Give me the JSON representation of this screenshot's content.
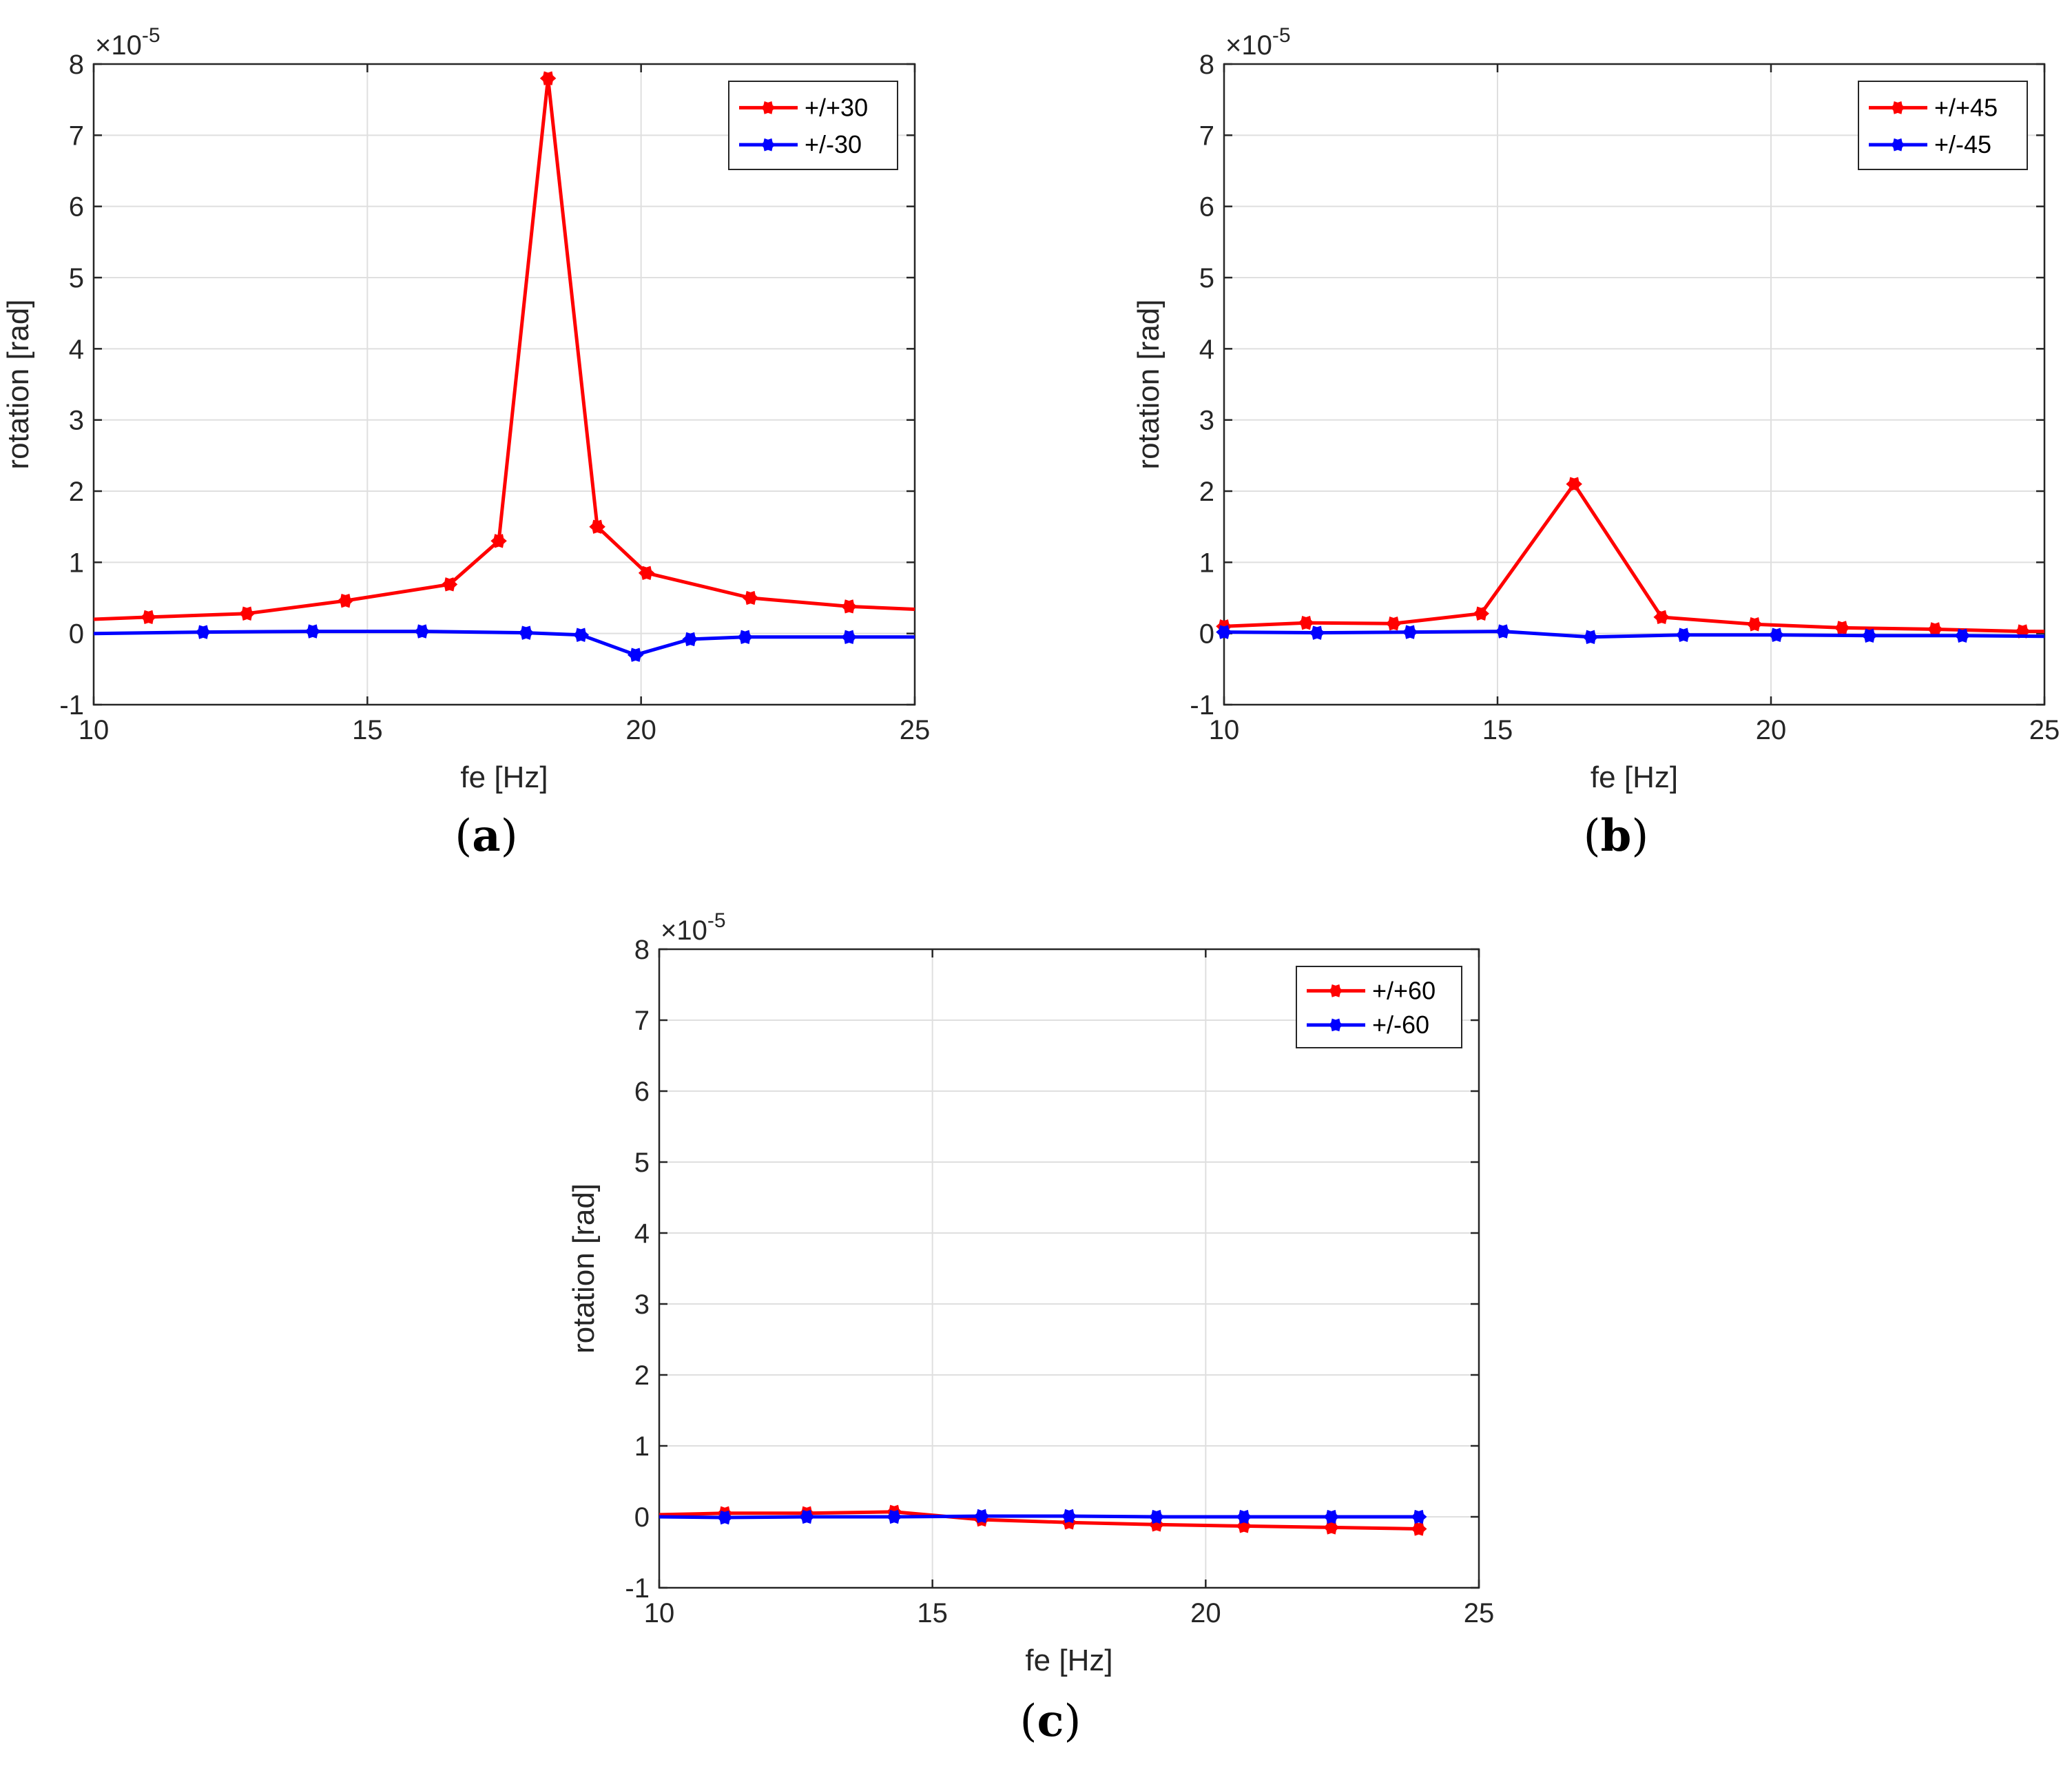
{
  "colors": {
    "red_series": "#ff0000",
    "blue_series": "#0000ff",
    "grid": "#dfdfdf",
    "axis": "#262626"
  },
  "chart_data": [
    {
      "type": "line",
      "panel_label": "a",
      "xlabel": "fe [Hz]",
      "ylabel": "rotation [rad]",
      "y_multiplier": "×10",
      "y_exponent": "-5",
      "xlim": [
        10,
        25
      ],
      "ylim": [
        -1,
        8
      ],
      "xticks": [
        10,
        15,
        20,
        25
      ],
      "yticks": [
        -1,
        0,
        1,
        2,
        3,
        4,
        5,
        6,
        7,
        8
      ],
      "grid": true,
      "legend_position": "top-right",
      "series": [
        {
          "name": "+/+30",
          "color": "#ff0000",
          "points": [
            [
              10,
              0.2
            ],
            [
              11.0,
              0.23
            ],
            [
              12.8,
              0.28
            ],
            [
              14.6,
              0.46
            ],
            [
              16.5,
              0.69
            ],
            [
              17.4,
              1.3
            ],
            [
              18.3,
              7.8
            ],
            [
              19.2,
              1.5
            ],
            [
              20.1,
              0.85
            ],
            [
              22.0,
              0.5
            ],
            [
              23.8,
              0.38
            ],
            [
              25,
              0.34
            ]
          ],
          "marker_points": [
            [
              11.0,
              0.23
            ],
            [
              12.8,
              0.28
            ],
            [
              14.6,
              0.46
            ],
            [
              16.5,
              0.69
            ],
            [
              17.4,
              1.3
            ],
            [
              18.3,
              7.8
            ],
            [
              19.2,
              1.5
            ],
            [
              20.1,
              0.85
            ],
            [
              22.0,
              0.5
            ],
            [
              23.8,
              0.38
            ]
          ]
        },
        {
          "name": "+/-30",
          "color": "#0000ff",
          "points": [
            [
              10,
              0.0
            ],
            [
              12.0,
              0.02
            ],
            [
              14.0,
              0.03
            ],
            [
              16.0,
              0.03
            ],
            [
              17.9,
              0.01
            ],
            [
              18.9,
              -0.02
            ],
            [
              19.9,
              -0.3
            ],
            [
              20.9,
              -0.08
            ],
            [
              21.9,
              -0.05
            ],
            [
              23.8,
              -0.05
            ],
            [
              25,
              -0.05
            ]
          ],
          "marker_points": [
            [
              12.0,
              0.02
            ],
            [
              14.0,
              0.03
            ],
            [
              16.0,
              0.03
            ],
            [
              17.9,
              0.01
            ],
            [
              18.9,
              -0.02
            ],
            [
              19.9,
              -0.3
            ],
            [
              20.9,
              -0.08
            ],
            [
              21.9,
              -0.05
            ],
            [
              23.8,
              -0.05
            ]
          ]
        }
      ]
    },
    {
      "type": "line",
      "panel_label": "b",
      "xlabel": "fe [Hz]",
      "ylabel": "rotation [rad]",
      "y_multiplier": "×10",
      "y_exponent": "-5",
      "xlim": [
        10,
        25
      ],
      "ylim": [
        -1,
        8
      ],
      "xticks": [
        10,
        15,
        20,
        25
      ],
      "yticks": [
        -1,
        0,
        1,
        2,
        3,
        4,
        5,
        6,
        7,
        8
      ],
      "grid": true,
      "legend_position": "top-right",
      "series": [
        {
          "name": "+/+45",
          "color": "#ff0000",
          "points": [
            [
              10,
              0.1
            ],
            [
              11.5,
              0.15
            ],
            [
              13.1,
              0.14
            ],
            [
              14.7,
              0.28
            ],
            [
              16.4,
              2.1
            ],
            [
              18.0,
              0.23
            ],
            [
              19.7,
              0.13
            ],
            [
              21.3,
              0.08
            ],
            [
              23.0,
              0.06
            ],
            [
              24.6,
              0.03
            ],
            [
              25,
              0.03
            ]
          ],
          "marker_points": [
            [
              10.0,
              0.1
            ],
            [
              11.5,
              0.15
            ],
            [
              13.1,
              0.14
            ],
            [
              14.7,
              0.28
            ],
            [
              16.4,
              2.1
            ],
            [
              18.0,
              0.23
            ],
            [
              19.7,
              0.13
            ],
            [
              21.3,
              0.08
            ],
            [
              23.0,
              0.06
            ],
            [
              24.6,
              0.03
            ]
          ]
        },
        {
          "name": "+/-45",
          "color": "#0000ff",
          "points": [
            [
              10,
              0.02
            ],
            [
              11.7,
              0.01
            ],
            [
              13.4,
              0.02
            ],
            [
              15.1,
              0.03
            ],
            [
              16.7,
              -0.05
            ],
            [
              18.4,
              -0.02
            ],
            [
              20.1,
              -0.02
            ],
            [
              21.8,
              -0.03
            ],
            [
              23.5,
              -0.03
            ],
            [
              25,
              -0.04
            ]
          ],
          "marker_points": [
            [
              10.0,
              0.02
            ],
            [
              11.7,
              0.01
            ],
            [
              13.4,
              0.02
            ],
            [
              15.1,
              0.03
            ],
            [
              16.7,
              -0.05
            ],
            [
              18.4,
              -0.02
            ],
            [
              20.1,
              -0.02
            ],
            [
              21.8,
              -0.03
            ],
            [
              23.5,
              -0.03
            ]
          ]
        }
      ]
    },
    {
      "type": "line",
      "panel_label": "c",
      "xlabel": "fe [Hz]",
      "ylabel": "rotation [rad]",
      "y_multiplier": "×10",
      "y_exponent": "-5",
      "xlim": [
        10,
        25
      ],
      "ylim": [
        -1,
        8
      ],
      "xticks": [
        10,
        15,
        20,
        25
      ],
      "yticks": [
        -1,
        0,
        1,
        2,
        3,
        4,
        5,
        6,
        7,
        8
      ],
      "grid": true,
      "legend_position": "top-right",
      "series": [
        {
          "name": "+/+60",
          "color": "#ff0000",
          "points": [
            [
              10,
              0.03
            ],
            [
              11.2,
              0.05
            ],
            [
              12.7,
              0.05
            ],
            [
              14.3,
              0.07
            ],
            [
              15.9,
              -0.04
            ],
            [
              17.5,
              -0.08
            ],
            [
              19.1,
              -0.11
            ],
            [
              20.7,
              -0.13
            ],
            [
              22.3,
              -0.15
            ],
            [
              23.9,
              -0.17
            ]
          ],
          "marker_points": [
            [
              11.2,
              0.05
            ],
            [
              12.7,
              0.05
            ],
            [
              14.3,
              0.07
            ],
            [
              15.9,
              -0.04
            ],
            [
              17.5,
              -0.08
            ],
            [
              19.1,
              -0.11
            ],
            [
              20.7,
              -0.13
            ],
            [
              22.3,
              -0.15
            ],
            [
              23.9,
              -0.17
            ]
          ]
        },
        {
          "name": "+/-60",
          "color": "#0000ff",
          "points": [
            [
              10,
              0.0
            ],
            [
              11.2,
              -0.01
            ],
            [
              12.7,
              0.0
            ],
            [
              14.3,
              0.0
            ],
            [
              15.9,
              0.01
            ],
            [
              17.5,
              0.01
            ],
            [
              19.1,
              0.0
            ],
            [
              20.7,
              0.0
            ],
            [
              22.3,
              0.0
            ],
            [
              23.9,
              0.0
            ]
          ],
          "marker_points": [
            [
              11.2,
              -0.01
            ],
            [
              12.7,
              0.0
            ],
            [
              14.3,
              0.0
            ],
            [
              15.9,
              0.01
            ],
            [
              17.5,
              0.01
            ],
            [
              19.1,
              0.0
            ],
            [
              20.7,
              0.0
            ],
            [
              22.3,
              0.0
            ],
            [
              23.9,
              0.0
            ]
          ]
        }
      ]
    }
  ]
}
